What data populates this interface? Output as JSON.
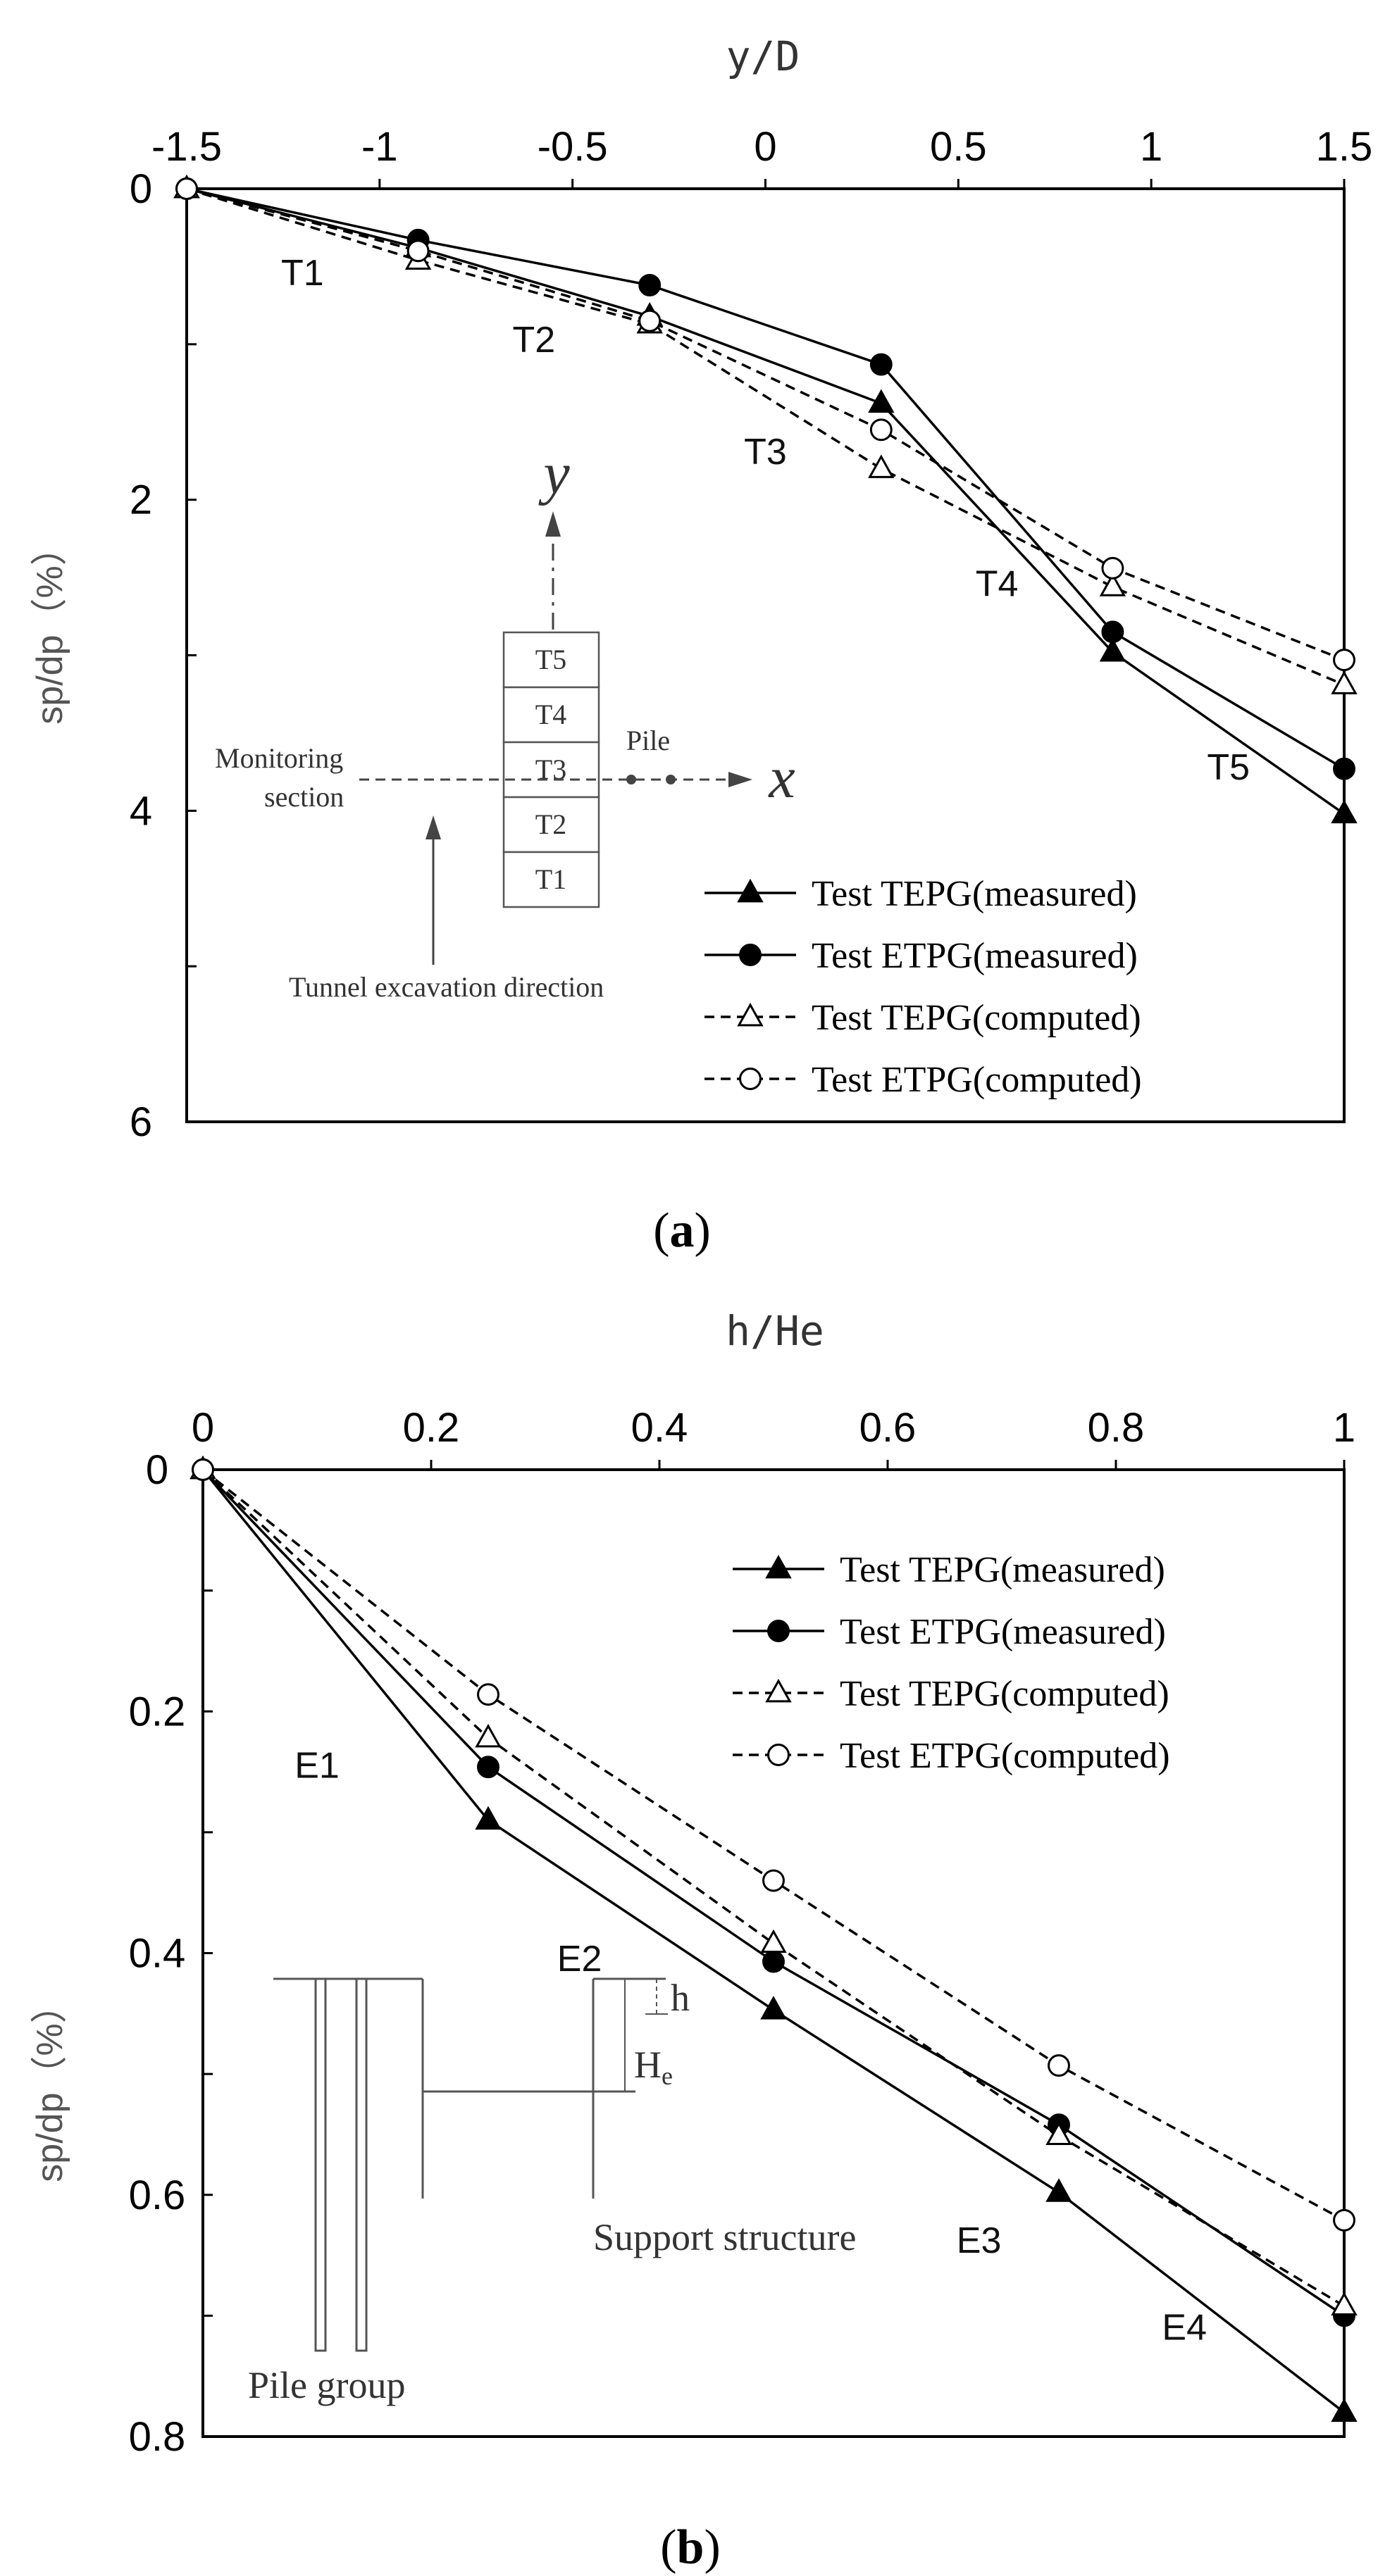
{
  "chart_data": [
    {
      "type": "line",
      "caption": "(a)",
      "caption_letter": "a",
      "xlabel": "y/D",
      "ylabel": "sp/dp（%）",
      "xlim": [
        -1.5,
        1.5
      ],
      "ylim": [
        0,
        6
      ],
      "y_inverted": true,
      "x_axis_position": "top",
      "x_ticks": [
        "-1.5",
        "-1",
        "-0.5",
        "0",
        "0.5",
        "1",
        "1.5"
      ],
      "x_tick_values": [
        -1.5,
        -1,
        -0.5,
        0,
        0.5,
        1,
        1.5
      ],
      "y_ticks": [
        "0",
        "2",
        "4",
        "6"
      ],
      "y_tick_values": [
        0,
        2,
        4,
        6
      ],
      "x": [
        -1.5,
        -0.9,
        -0.3,
        0.3,
        0.9,
        1.5
      ],
      "series": [
        {
          "name": "Test TEPG(measured)",
          "marker": "filled-triangle",
          "line": "solid",
          "values": [
            0.0,
            0.38,
            0.82,
            1.38,
            2.98,
            4.02
          ]
        },
        {
          "name": "Test ETPG(measured)",
          "marker": "filled-circle",
          "line": "solid",
          "values": [
            0.0,
            0.33,
            0.62,
            1.13,
            2.85,
            3.73
          ]
        },
        {
          "name": "Test TEPG(computed)",
          "marker": "open-triangle",
          "line": "dashed",
          "values": [
            0.0,
            0.46,
            0.87,
            1.8,
            2.56,
            3.19
          ]
        },
        {
          "name": "Test ETPG(computed)",
          "marker": "open-circle",
          "line": "dashed",
          "values": [
            0.0,
            0.4,
            0.85,
            1.55,
            2.44,
            3.03
          ]
        }
      ],
      "point_labels": [
        {
          "text": "T1",
          "x": -1.2,
          "y": 0.62
        },
        {
          "text": "T2",
          "x": -0.6,
          "y": 1.05
        },
        {
          "text": "T3",
          "x": 0.0,
          "y": 1.77
        },
        {
          "text": "T4",
          "x": 0.6,
          "y": 2.62
        },
        {
          "text": "T5",
          "x": 1.2,
          "y": 3.8
        }
      ],
      "legend_position": "lower-right",
      "inset": {
        "cells": [
          "T5",
          "T4",
          "T3",
          "T2",
          "T1"
        ],
        "y_axis": "y",
        "x_axis": "x",
        "pile_label": "Pile",
        "monitoring_label_line1": "Monitoring",
        "monitoring_label_line2": "section",
        "direction_label": "Tunnel excavation direction"
      }
    },
    {
      "type": "line",
      "caption": "(b)",
      "caption_letter": "b",
      "xlabel": "h/He",
      "ylabel": "sp/dp（%）",
      "xlim": [
        0,
        1
      ],
      "ylim": [
        0,
        0.8
      ],
      "y_inverted": true,
      "x_axis_position": "top",
      "x_ticks": [
        "0",
        "0.2",
        "0.4",
        "0.6",
        "0.8",
        "1"
      ],
      "x_tick_values": [
        0,
        0.2,
        0.4,
        0.6,
        0.8,
        1
      ],
      "y_ticks": [
        "0",
        "0.2",
        "0.4",
        "0.6",
        "0.8"
      ],
      "y_tick_values": [
        0,
        0.2,
        0.4,
        0.6,
        0.8
      ],
      "x": [
        0,
        0.25,
        0.5,
        0.75,
        1.0
      ],
      "series": [
        {
          "name": "Test TEPG(measured)",
          "marker": "filled-triangle",
          "line": "solid",
          "values": [
            0.0,
            0.29,
            0.447,
            0.598,
            0.78
          ]
        },
        {
          "name": "Test ETPG(measured)",
          "marker": "filled-circle",
          "line": "solid",
          "values": [
            0.0,
            0.246,
            0.407,
            0.542,
            0.7
          ]
        },
        {
          "name": "Test TEPG(computed)",
          "marker": "open-triangle",
          "line": "dashed",
          "values": [
            0.0,
            0.222,
            0.392,
            0.551,
            0.692
          ]
        },
        {
          "name": "Test ETPG(computed)",
          "marker": "open-circle",
          "line": "dashed",
          "values": [
            0.0,
            0.186,
            0.34,
            0.493,
            0.621
          ]
        }
      ],
      "point_labels": [
        {
          "text": "E1",
          "x": 0.1,
          "y": 0.255
        },
        {
          "text": "E2",
          "x": 0.33,
          "y": 0.415
        },
        {
          "text": "E3",
          "x": 0.68,
          "y": 0.648
        },
        {
          "text": "E4",
          "x": 0.86,
          "y": 0.72
        }
      ],
      "legend_position": "upper-right",
      "inset": {
        "pile_group_label": "Pile group",
        "support_label": "Support structure",
        "h_label": "h",
        "He_label_main": "H",
        "He_label_sub": "e"
      }
    }
  ]
}
